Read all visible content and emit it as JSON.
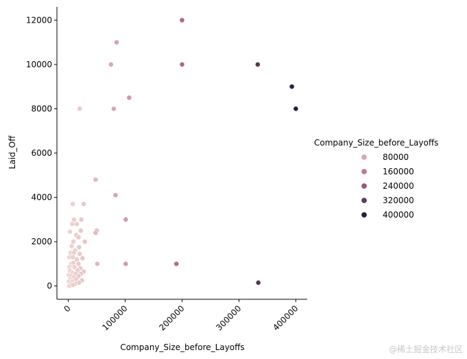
{
  "chart_data": {
    "type": "scatter",
    "xlabel": "Company_Size_before_Layoffs",
    "ylabel": "Laid_Off",
    "xlim": [
      -20000,
      420000
    ],
    "ylim": [
      -600,
      12600
    ],
    "x_ticks": [
      0,
      100000,
      200000,
      300000,
      400000
    ],
    "x_tick_labels": [
      "0",
      "100000",
      "200000",
      "300000",
      "400000"
    ],
    "y_ticks": [
      0,
      2000,
      4000,
      6000,
      8000,
      10000,
      12000
    ],
    "y_tick_labels": [
      "0",
      "2000",
      "4000",
      "6000",
      "8000",
      "10000",
      "12000"
    ],
    "hue_variable": "Company_Size_before_Layoffs",
    "color_scale": {
      "min": 0,
      "max": 400000,
      "low_color": "#efd5d0",
      "high_color": "#2a1f3a"
    },
    "grid": false,
    "legend": {
      "title": "Company_Size_before_Layoffs",
      "placement": "right",
      "entries": [
        {
          "label": "80000",
          "value": 80000
        },
        {
          "label": "160000",
          "value": 160000
        },
        {
          "label": "240000",
          "value": 240000
        },
        {
          "label": "320000",
          "value": 320000
        },
        {
          "label": "400000",
          "value": 400000
        }
      ]
    },
    "points": [
      {
        "x": 200000,
        "y": 12000
      },
      {
        "x": 85000,
        "y": 11000
      },
      {
        "x": 75000,
        "y": 10000
      },
      {
        "x": 200000,
        "y": 10000
      },
      {
        "x": 333000,
        "y": 10000
      },
      {
        "x": 393000,
        "y": 9000
      },
      {
        "x": 400000,
        "y": 8000
      },
      {
        "x": 20000,
        "y": 8000
      },
      {
        "x": 80000,
        "y": 8000
      },
      {
        "x": 107000,
        "y": 8500
      },
      {
        "x": 48000,
        "y": 4800
      },
      {
        "x": 83000,
        "y": 4100
      },
      {
        "x": 8000,
        "y": 3700
      },
      {
        "x": 27000,
        "y": 3700
      },
      {
        "x": 10000,
        "y": 3000
      },
      {
        "x": 23000,
        "y": 3000
      },
      {
        "x": 101000,
        "y": 3000
      },
      {
        "x": 7000,
        "y": 2800
      },
      {
        "x": 15000,
        "y": 2800
      },
      {
        "x": 50000,
        "y": 2500
      },
      {
        "x": 48000,
        "y": 2400
      },
      {
        "x": 3000,
        "y": 2450
      },
      {
        "x": 22000,
        "y": 2500
      },
      {
        "x": 14000,
        "y": 2300
      },
      {
        "x": 18000,
        "y": 2200
      },
      {
        "x": 9000,
        "y": 2000
      },
      {
        "x": 29000,
        "y": 2000
      },
      {
        "x": 6000,
        "y": 1800
      },
      {
        "x": 19000,
        "y": 1750
      },
      {
        "x": 12000,
        "y": 1600
      },
      {
        "x": 4000,
        "y": 1500
      },
      {
        "x": 10000,
        "y": 1500
      },
      {
        "x": 20000,
        "y": 1450
      },
      {
        "x": 2000,
        "y": 1300
      },
      {
        "x": 8000,
        "y": 1300
      },
      {
        "x": 25000,
        "y": 1250
      },
      {
        "x": 15000,
        "y": 1200
      },
      {
        "x": 5000,
        "y": 1000
      },
      {
        "x": 9000,
        "y": 1050
      },
      {
        "x": 18000,
        "y": 1000
      },
      {
        "x": 51000,
        "y": 1000
      },
      {
        "x": 101000,
        "y": 1000
      },
      {
        "x": 190000,
        "y": 1000
      },
      {
        "x": 2000,
        "y": 850
      },
      {
        "x": 11000,
        "y": 850
      },
      {
        "x": 21000,
        "y": 800
      },
      {
        "x": 3000,
        "y": 700
      },
      {
        "x": 16000,
        "y": 700
      },
      {
        "x": 27000,
        "y": 650
      },
      {
        "x": 7000,
        "y": 600
      },
      {
        "x": 13000,
        "y": 550
      },
      {
        "x": 22000,
        "y": 550
      },
      {
        "x": 1000,
        "y": 500
      },
      {
        "x": 5000,
        "y": 450
      },
      {
        "x": 18000,
        "y": 450
      },
      {
        "x": 10000,
        "y": 400
      },
      {
        "x": 3000,
        "y": 300
      },
      {
        "x": 14000,
        "y": 300
      },
      {
        "x": 24000,
        "y": 250
      },
      {
        "x": 1000,
        "y": 200
      },
      {
        "x": 7000,
        "y": 200
      },
      {
        "x": 19000,
        "y": 150
      },
      {
        "x": 4000,
        "y": 100
      },
      {
        "x": 12000,
        "y": 100
      },
      {
        "x": 2000,
        "y": 0
      },
      {
        "x": 8000,
        "y": 50
      },
      {
        "x": 334000,
        "y": 150
      }
    ]
  },
  "watermark": "@稀土掘金技术社区"
}
